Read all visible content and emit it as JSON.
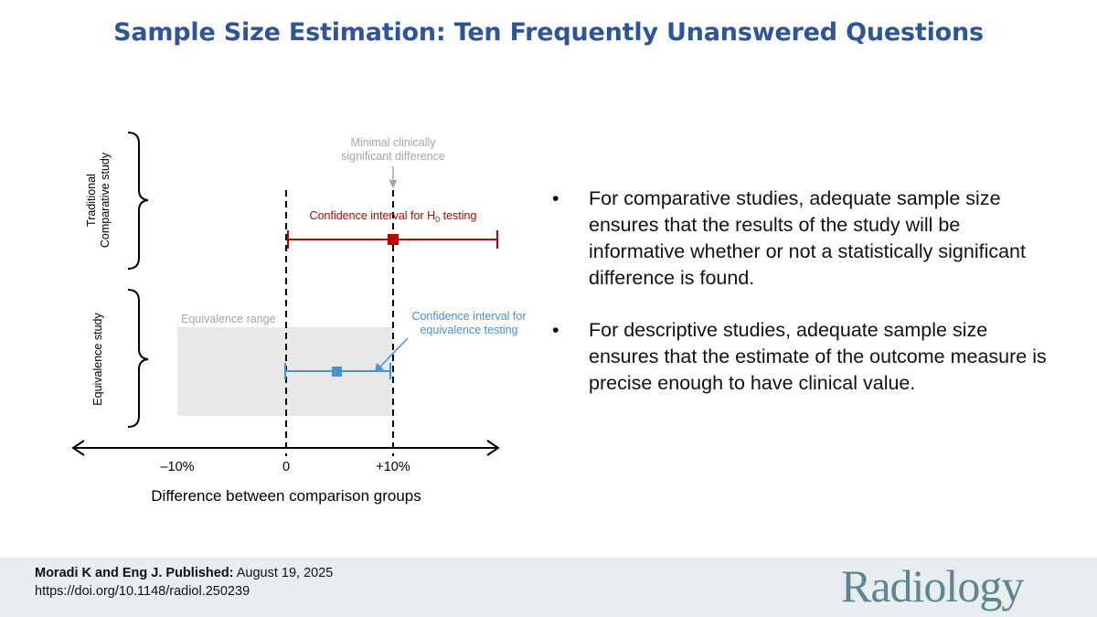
{
  "title": "Sample Size Estimation: Ten Frequently Unanswered Questions",
  "diagram": {
    "row_labels": {
      "traditional_line1": "Traditional",
      "traditional_line2": "Comparative study",
      "equivalence": "Equivalence study"
    },
    "annotations": {
      "mcsd_line1": "Minimal clinically",
      "mcsd_line2": "significant difference",
      "ci_h0_prefix": "Confidence interval for H",
      "ci_h0_sub": "0",
      "ci_h0_suffix": " testing",
      "equiv_range": "Equivalence range",
      "ci_equiv_line1": "Confidence interval for",
      "ci_equiv_line2": "equivalence testing"
    },
    "axis": {
      "ticks": [
        "–10%",
        "0",
        "+10%"
      ],
      "xlabel": "Difference between comparison groups"
    },
    "colors": {
      "h0_interval": "#c00000",
      "equivalence_interval": "#4a90d9",
      "equivalence_range_fill": "#e8e8e8",
      "annotation_gray": "#a6a6a6"
    }
  },
  "bullets": [
    "For comparative studies, adequate sample size ensures that the results of the study will be informative whether or not a statistically significant difference is found.",
    "For descriptive studies, adequate sample size ensures that the estimate of the outcome measure is precise enough to have clinical value."
  ],
  "footer": {
    "authors": "Moradi K and Eng J. Published:",
    "date": " August 19, 2025",
    "doi": "https://doi.org/10.1148/radiol.250239",
    "logo": "Radiology"
  }
}
